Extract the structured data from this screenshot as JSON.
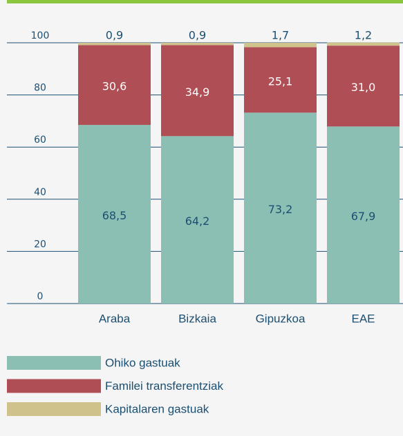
{
  "chart_data": {
    "type": "stacked_bar",
    "categories": [
      "Araba",
      "Bizkaia",
      "Gipuzkoa",
      "EAE"
    ],
    "series": [
      {
        "name": "Ohiko gastuak",
        "color": "#8bbfb3",
        "values": [
          68.5,
          64.2,
          73.2,
          67.9
        ],
        "value_labels": [
          "68,5",
          "64,2",
          "73,2",
          "67,9"
        ]
      },
      {
        "name": "Familei transferentziak",
        "color": "#b04e56",
        "values": [
          30.6,
          34.9,
          25.1,
          31.0
        ],
        "value_labels": [
          "30,6",
          "34,9",
          "25,1",
          "31,0"
        ]
      },
      {
        "name": "Kapitalaren gastuak",
        "color": "#cfc28a",
        "values": [
          0.9,
          0.9,
          1.7,
          1.2
        ],
        "value_labels": [
          "0,9",
          "0,9",
          "1,7",
          "1,2"
        ]
      }
    ],
    "ylim": [
      0,
      100
    ],
    "yticks": [
      0,
      20,
      40,
      60,
      80,
      100
    ],
    "grid": true
  }
}
